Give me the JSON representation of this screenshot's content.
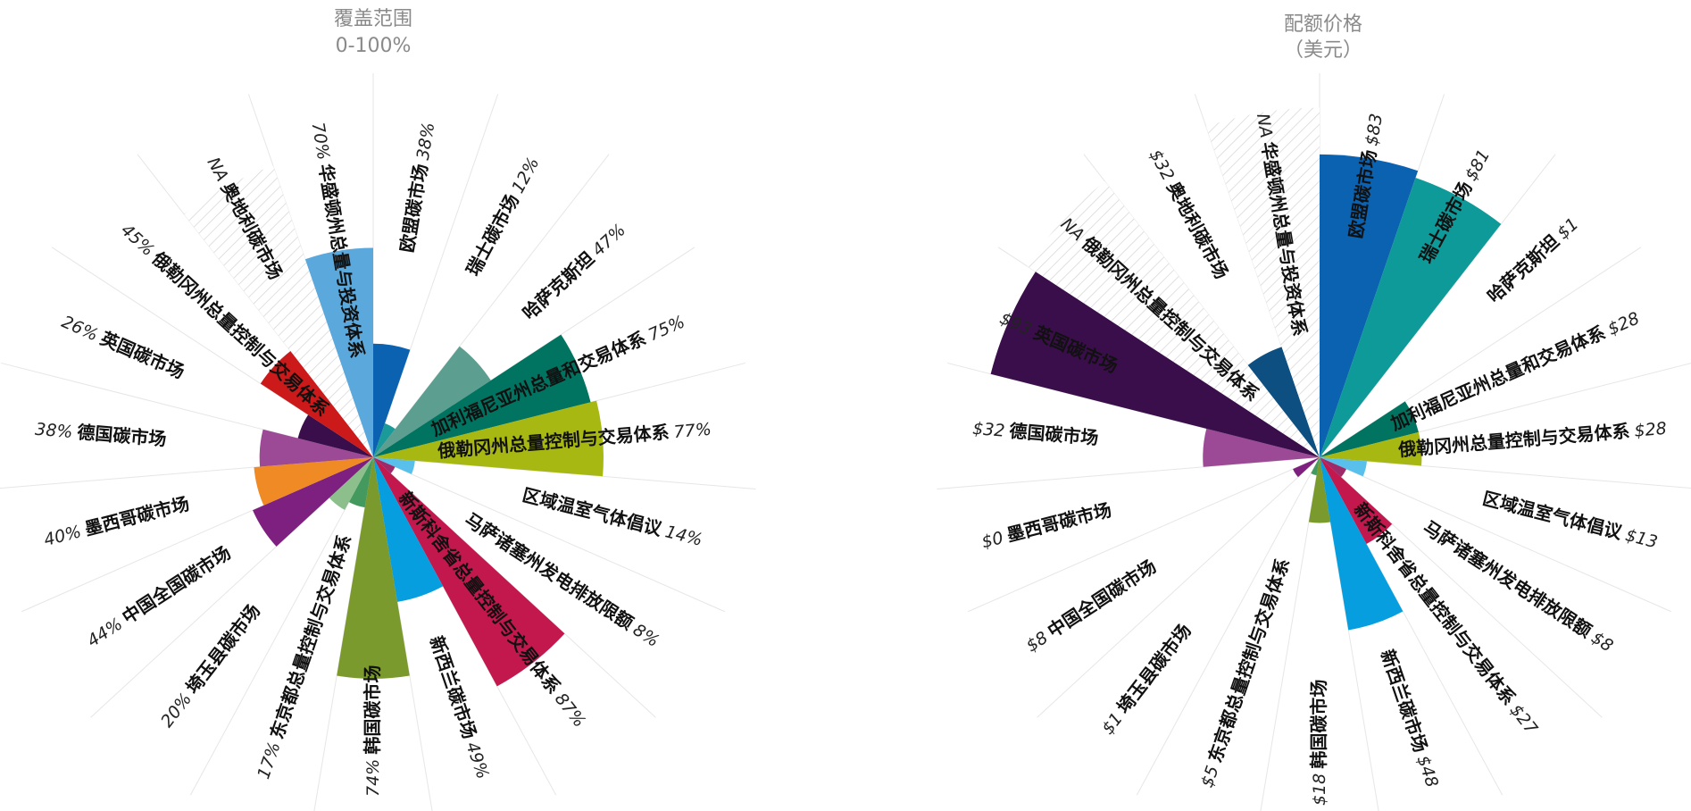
{
  "chart_data": [
    {
      "type": "polar-bar",
      "title": "覆盖范围",
      "subtitle": "0-100%",
      "value_format": "percent",
      "rmax": 100,
      "categories": [
        {
          "name": "欧盟碳市场",
          "value": 38,
          "display": "38%",
          "color": "#0a62b0"
        },
        {
          "name": "瑞士碳市场",
          "value": 12,
          "display": "12%",
          "color": "#1a9a98"
        },
        {
          "name": "哈萨克斯坦",
          "value": 47,
          "display": "47%",
          "color": "#5c9e8f"
        },
        {
          "name": "加利福尼亚州总量和交易体系",
          "value": 75,
          "display": "75%",
          "color": "#007460"
        },
        {
          "name": "俄勒冈州总量控制与交易体系",
          "value": 77,
          "display": "77%",
          "color": "#a8b812"
        },
        {
          "name": "区域温室气体倡议",
          "value": 14,
          "display": "14%",
          "color": "#58c0ea"
        },
        {
          "name": "马萨诸塞州发电排放限额",
          "value": 8,
          "display": "8%",
          "color": "#9f2a6a"
        },
        {
          "name": "新斯科舍省总量控制与交易体系",
          "value": 87,
          "display": "87%",
          "color": "#c2184e"
        },
        {
          "name": "新西兰碳市场",
          "value": 49,
          "display": "49%",
          "color": "#079ee0"
        },
        {
          "name": "韩国碳市场",
          "value": 74,
          "display": "74%",
          "color": "#7a9a2d"
        },
        {
          "name": "东京都总量控制与交易体系",
          "value": 17,
          "display": "17%",
          "color": "#449a5e"
        },
        {
          "name": "埼玉县碳市场",
          "value": 20,
          "display": "20%",
          "color": "#8cbf8c"
        },
        {
          "name": "中国全国碳市场",
          "value": 44,
          "display": "44%",
          "color": "#7e2080"
        },
        {
          "name": "墨西哥碳市场",
          "value": 40,
          "display": "40%",
          "color": "#f08a24"
        },
        {
          "name": "德国碳市场",
          "value": 38,
          "display": "38%",
          "color": "#9c4a96"
        },
        {
          "name": "英国碳市场",
          "value": 26,
          "display": "26%",
          "color": "#3a0e4a"
        },
        {
          "name": "俄勒冈州总量控制与交易体系",
          "value": 45,
          "display": "45%",
          "color": "#cc1a1a"
        },
        {
          "name": "奥地利碳市场",
          "value": null,
          "display": "NA",
          "color": "#ffffff"
        },
        {
          "name": "华盛顿州总量与投资体系",
          "value": 70,
          "display": "70%",
          "color": "#5ba8dc"
        }
      ]
    },
    {
      "type": "polar-bar",
      "title": "配额价格",
      "subtitle": "（美元）",
      "value_format": "dollar",
      "rmax": 93,
      "categories": [
        {
          "name": "欧盟碳市场",
          "value": 83,
          "display": "$83",
          "color": "#0a62b0"
        },
        {
          "name": "瑞士碳市场",
          "value": 81,
          "display": "$81",
          "color": "#0f9a9a"
        },
        {
          "name": "哈萨克斯坦",
          "value": 1,
          "display": "$1",
          "color": "#5c9e8f"
        },
        {
          "name": "加利福尼亚州总量和交易体系",
          "value": 28,
          "display": "$28",
          "color": "#007460"
        },
        {
          "name": "俄勒冈州总量控制与交易体系",
          "value": 28,
          "display": "$28",
          "color": "#a8b812"
        },
        {
          "name": "区域温室气体倡议",
          "value": 13,
          "display": "$13",
          "color": "#58c0ea"
        },
        {
          "name": "马萨诸塞州发电排放限额",
          "value": 8,
          "display": "$8",
          "color": "#9f2a6a"
        },
        {
          "name": "新斯科舍省总量控制与交易体系",
          "value": 27,
          "display": "$27",
          "color": "#c2184e"
        },
        {
          "name": "新西兰碳市场",
          "value": 48,
          "display": "$48",
          "color": "#079ee0"
        },
        {
          "name": "韩国碳市场",
          "value": 18,
          "display": "$18",
          "color": "#7a9a2d"
        },
        {
          "name": "东京都总量控制与交易体系",
          "value": 5,
          "display": "$5",
          "color": "#449a5e"
        },
        {
          "name": "埼玉县碳市场",
          "value": 1,
          "display": "$1",
          "color": "#8cbf8c"
        },
        {
          "name": "中国全国碳市场",
          "value": 8,
          "display": "$8",
          "color": "#7e2080"
        },
        {
          "name": "墨西哥碳市场",
          "value": 0,
          "display": "$0",
          "color": "#f08a24"
        },
        {
          "name": "德国碳市场",
          "value": 32,
          "display": "$32",
          "color": "#9c4a96"
        },
        {
          "name": "英国碳市场",
          "value": 93,
          "display": "$93",
          "color": "#3a0e4a"
        },
        {
          "name": "俄勒冈州总量控制与交易体系",
          "value": null,
          "display": "NA",
          "color": "#ffffff"
        },
        {
          "name": "奥地利碳市场",
          "value": 32,
          "display": "$32",
          "color": "#0d4f80"
        },
        {
          "name": "华盛顿州总量与投资体系",
          "value": null,
          "display": "NA",
          "color": "#ffffff"
        }
      ]
    }
  ]
}
